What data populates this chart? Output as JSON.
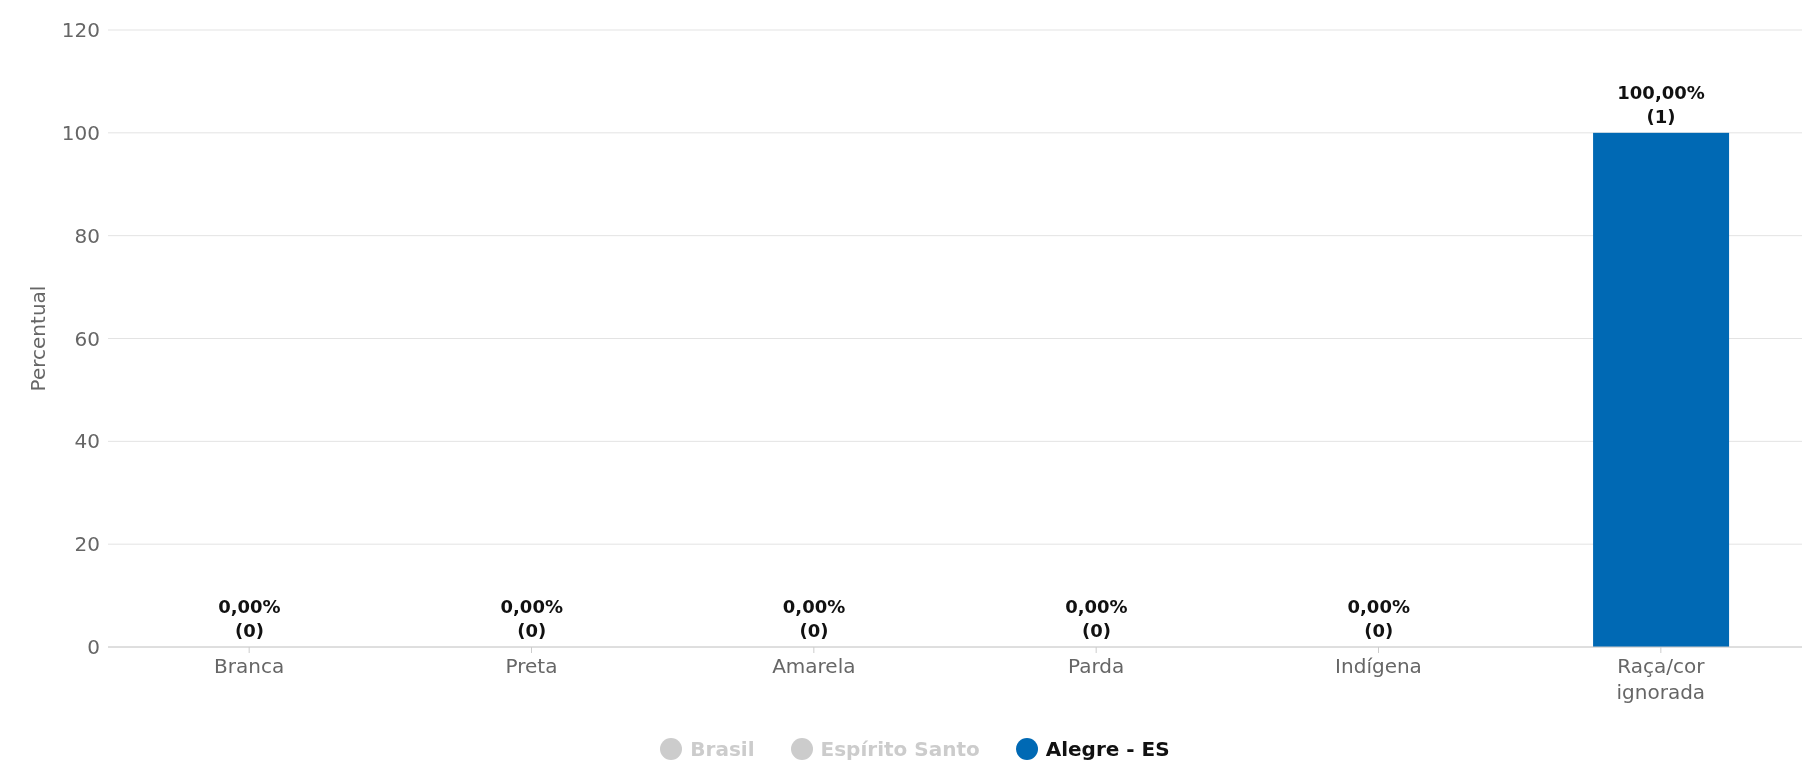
{
  "chart_data": {
    "type": "bar",
    "ylabel": "Percentual",
    "categories": [
      "Branca",
      "Preta",
      "Amarela",
      "Parda",
      "Indígena",
      "Raça/cor ignorada"
    ],
    "series": [
      {
        "name": "Brasil",
        "color": "#cccccc",
        "values": [
          null,
          null,
          null,
          null,
          null,
          null
        ]
      },
      {
        "name": "Espírito Santo",
        "color": "#cccccc",
        "values": [
          null,
          null,
          null,
          null,
          null,
          null
        ]
      },
      {
        "name": "Alegre - ES",
        "color": "#0069b4",
        "values": [
          0,
          0,
          0,
          0,
          0,
          100
        ],
        "value_labels": [
          "0,00%\n(0)",
          "0,00%\n(0)",
          "0,00%\n(0)",
          "0,00%\n(0)",
          "0,00%\n(0)",
          "100,00%\n(1)"
        ]
      }
    ],
    "ylim": [
      0,
      120
    ],
    "yticks": [
      0,
      20,
      40,
      60,
      80,
      100,
      120
    ],
    "grid": "y",
    "legend": "bottom"
  }
}
